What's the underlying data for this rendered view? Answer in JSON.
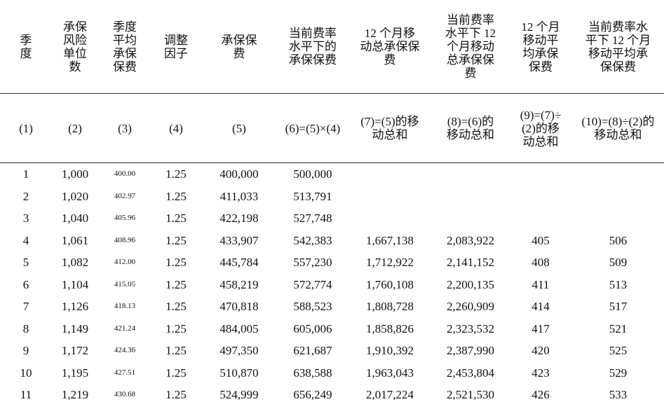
{
  "table": {
    "header": [
      "季度",
      "承保风险单位数",
      "季度平均承保保费",
      "调整因子",
      "承保保费",
      "当前费率水平下的承保保费",
      "12 个月移动总承保保费",
      "当前费率水平下 12 个月移动总承保保费",
      "12 个月移动平均承保保费",
      "当前费率水平下 12 个月移动平均承保保费"
    ],
    "formulas": [
      "(1)",
      "(2)",
      "(3)",
      "(4)",
      "(5)",
      "(6)=(5)×(4)",
      "(7)=(5)的移动总和",
      "(8)=(6)的移动总和",
      "(9)=(7)÷(2)的移动总和",
      "(10)=(8)÷(2)的移动总和"
    ],
    "rows": [
      [
        "1",
        "1,000",
        "400.00",
        "1.25",
        "400,000",
        "500,000"
      ],
      [
        "2",
        "1,020",
        "402.97",
        "1.25",
        "411,033",
        "513,791"
      ],
      [
        "3",
        "1,040",
        "405.96",
        "1.25",
        "422,198",
        "527,748"
      ],
      [
        "4",
        "1,061",
        "408.96",
        "1.25",
        "433,907",
        "542,383",
        "1,667,138",
        "2,083,922",
        "405",
        "506"
      ],
      [
        "5",
        "1,082",
        "412.00",
        "1.25",
        "445,784",
        "557,230",
        "1,712,922",
        "2,141,152",
        "408",
        "509"
      ],
      [
        "6",
        "1,104",
        "415.05",
        "1.25",
        "458,219",
        "572,774",
        "1,760,108",
        "2,200,135",
        "411",
        "513"
      ],
      [
        "7",
        "1,126",
        "418.13",
        "1.25",
        "470,818",
        "588,523",
        "1,808,728",
        "2,260,909",
        "414",
        "517"
      ],
      [
        "8",
        "1,149",
        "421.24",
        "1.25",
        "484,005",
        "605,006",
        "1,858,826",
        "2,323,532",
        "417",
        "521"
      ],
      [
        "9",
        "1,172",
        "424.36",
        "1.25",
        "497,350",
        "621,687",
        "1,910,392",
        "2,387,990",
        "420",
        "525"
      ],
      [
        "10",
        "1,195",
        "427.51",
        "1.25",
        "510,870",
        "638,588",
        "1,963,043",
        "2,453,804",
        "423",
        "529"
      ],
      [
        "11",
        "1,219",
        "430.68",
        "1.25",
        "524,999",
        "656,249",
        "2,017,224",
        "2,521,530",
        "426",
        "533"
      ]
    ]
  }
}
